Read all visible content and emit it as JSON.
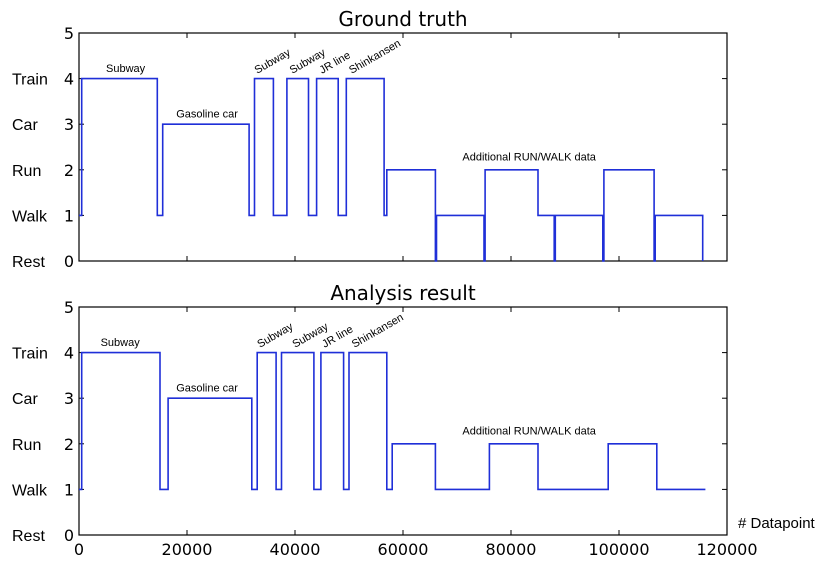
{
  "chart_data": [
    {
      "type": "line",
      "title": "Ground truth",
      "ylim": [
        0,
        5
      ],
      "xlim": [
        0,
        120000
      ],
      "y_ticks": [
        "0",
        "1",
        "2",
        "3",
        "4",
        "5"
      ],
      "y_category_labels": [
        "Rest",
        "Walk",
        "Run",
        "Car",
        "Train"
      ],
      "series": [
        {
          "points": [
            [
              0,
              1
            ],
            [
              500,
              1
            ],
            [
              500,
              4
            ],
            [
              14500,
              4
            ],
            [
              14500,
              1
            ],
            [
              15500,
              1
            ],
            [
              15500,
              3
            ],
            [
              31500,
              3
            ],
            [
              31500,
              1
            ],
            [
              32500,
              1
            ],
            [
              32500,
              4
            ],
            [
              36000,
              4
            ],
            [
              36000,
              1
            ],
            [
              38500,
              1
            ],
            [
              38500,
              4
            ],
            [
              42500,
              4
            ],
            [
              42500,
              1
            ],
            [
              44000,
              1
            ],
            [
              44000,
              4
            ],
            [
              48000,
              4
            ],
            [
              48000,
              1
            ],
            [
              49500,
              1
            ],
            [
              49500,
              4
            ],
            [
              56500,
              4
            ],
            [
              56500,
              1
            ],
            [
              57000,
              1
            ],
            [
              57000,
              2
            ],
            [
              66000,
              2
            ],
            [
              66000,
              0
            ],
            [
              66200,
              0
            ],
            [
              66200,
              1
            ],
            [
              75000,
              1
            ],
            [
              75000,
              0
            ],
            [
              75200,
              0
            ],
            [
              75200,
              2
            ],
            [
              85000,
              2
            ],
            [
              85000,
              1
            ],
            [
              88000,
              1
            ],
            [
              88000,
              0
            ],
            [
              88200,
              0
            ],
            [
              88200,
              1
            ],
            [
              97000,
              1
            ],
            [
              97000,
              0
            ],
            [
              97200,
              0
            ],
            [
              97200,
              2
            ],
            [
              106500,
              2
            ],
            [
              106500,
              0
            ],
            [
              106700,
              0
            ],
            [
              106700,
              1
            ],
            [
              115500,
              1
            ],
            [
              115500,
              0
            ]
          ]
        }
      ],
      "annotations": [
        {
          "text": "Subway",
          "x": 5000,
          "y": 4.15,
          "rotate": 0
        },
        {
          "text": "Gasoline car",
          "x": 18000,
          "y": 3.15,
          "rotate": 0
        },
        {
          "text": "Subway",
          "x": 33000,
          "y": 4.1,
          "rotate": -30
        },
        {
          "text": "Subway",
          "x": 39500,
          "y": 4.1,
          "rotate": -30
        },
        {
          "text": "JR line",
          "x": 45000,
          "y": 4.1,
          "rotate": -30
        },
        {
          "text": "Shinkansen",
          "x": 50500,
          "y": 4.1,
          "rotate": -30
        },
        {
          "text": "Additional RUN/WALK data",
          "x": 71000,
          "y": 2.2,
          "rotate": 0
        }
      ]
    },
    {
      "type": "line",
      "title": "Analysis result",
      "xlabel": "# Datapoint",
      "ylim": [
        0,
        5
      ],
      "xlim": [
        0,
        120000
      ],
      "x_ticks": [
        "0",
        "20000",
        "40000",
        "60000",
        "80000",
        "100000",
        "120000"
      ],
      "y_ticks": [
        "0",
        "1",
        "2",
        "3",
        "4",
        "5"
      ],
      "y_category_labels": [
        "Rest",
        "Walk",
        "Run",
        "Car",
        "Train"
      ],
      "series": [
        {
          "points": [
            [
              0,
              1
            ],
            [
              500,
              1
            ],
            [
              500,
              4
            ],
            [
              15000,
              4
            ],
            [
              15000,
              1
            ],
            [
              16500,
              1
            ],
            [
              16500,
              3
            ],
            [
              32000,
              3
            ],
            [
              32000,
              1
            ],
            [
              33000,
              1
            ],
            [
              33000,
              4
            ],
            [
              36500,
              4
            ],
            [
              36500,
              1
            ],
            [
              37500,
              1
            ],
            [
              37500,
              4
            ],
            [
              43500,
              4
            ],
            [
              43500,
              1
            ],
            [
              44800,
              1
            ],
            [
              44800,
              4
            ],
            [
              49000,
              4
            ],
            [
              49000,
              1
            ],
            [
              50000,
              1
            ],
            [
              50000,
              4
            ],
            [
              57000,
              4
            ],
            [
              57000,
              1
            ],
            [
              58000,
              1
            ],
            [
              58000,
              2
            ],
            [
              66000,
              2
            ],
            [
              66000,
              1
            ],
            [
              76000,
              1
            ],
            [
              76000,
              2
            ],
            [
              85000,
              2
            ],
            [
              85000,
              1
            ],
            [
              98000,
              1
            ],
            [
              98000,
              2
            ],
            [
              107000,
              2
            ],
            [
              107000,
              1
            ],
            [
              116000,
              1
            ]
          ]
        }
      ],
      "annotations": [
        {
          "text": "Subway",
          "x": 4000,
          "y": 4.15,
          "rotate": 0
        },
        {
          "text": "Gasoline car",
          "x": 18000,
          "y": 3.15,
          "rotate": 0
        },
        {
          "text": "Subway",
          "x": 33500,
          "y": 4.1,
          "rotate": -30
        },
        {
          "text": "Subway",
          "x": 40000,
          "y": 4.1,
          "rotate": -30
        },
        {
          "text": "JR line",
          "x": 45500,
          "y": 4.1,
          "rotate": -30
        },
        {
          "text": "Shinkansen",
          "x": 51000,
          "y": 4.1,
          "rotate": -30
        },
        {
          "text": "Additional RUN/WALK data",
          "x": 71000,
          "y": 2.2,
          "rotate": 0
        }
      ]
    }
  ]
}
